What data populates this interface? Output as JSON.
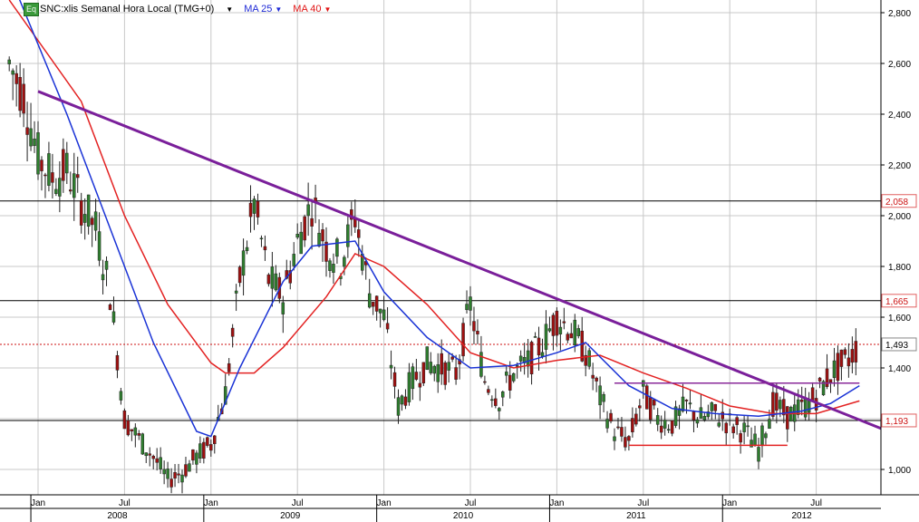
{
  "header": {
    "eq_badge": "Eq",
    "symbol": "SNC:xlis Semanal Hora Local (TMG+0)",
    "ma25_label": "MA 25",
    "ma40_label": "MA 40",
    "dropdown_glyph": "▼"
  },
  "colors": {
    "price_up": "#2f7f2f",
    "price_down": "#a01010",
    "ma25": "#1a33d6",
    "ma40": "#e32222",
    "trendline": "#7a1f9a",
    "support_line": "#e32222",
    "resistance_line": "#8a2a9a",
    "last_price_line": "#cc1111",
    "grid": "#c8c8c8"
  },
  "chart_data": {
    "type": "candlestick",
    "y_axis": {
      "min": 900,
      "max": 2850,
      "ticks": [
        "2,800",
        "2,600",
        "2,400",
        "2,200",
        "2,000",
        "1,800",
        "1,600",
        "1,400",
        "1,200",
        "1,000"
      ],
      "tick_values": [
        2800,
        2600,
        2400,
        2200,
        2000,
        1800,
        1600,
        1400,
        1200,
        1000
      ],
      "position": "right"
    },
    "x_axis": {
      "months": [
        "Jan",
        "Jul",
        "Jan",
        "Jul",
        "Jan",
        "Jul",
        "Jan",
        "Jul",
        "Jan",
        "Jul"
      ],
      "month_dates": [
        "2008-01",
        "2008-07",
        "2009-01",
        "2009-07",
        "2010-01",
        "2010-07",
        "2011-01",
        "2011-07",
        "2012-01",
        "2012-07"
      ],
      "years": [
        "2008",
        "2009",
        "2010",
        "2011",
        "2012"
      ]
    },
    "horizontal_levels": [
      {
        "value": 2058,
        "label": "2,058",
        "style": "solid",
        "color": "#000000"
      },
      {
        "value": 1665,
        "label": "1,665",
        "style": "solid",
        "color": "#000000"
      },
      {
        "value": 1193,
        "label": "1,193",
        "style": "solid",
        "color": "#000000"
      },
      {
        "value": 1493,
        "label": "1,493",
        "style": "dotted",
        "color": "#cc1111"
      }
    ],
    "last_price": 1493,
    "series_close": [
      {
        "date": "2007-11",
        "close": 2600
      },
      {
        "date": "2007-12",
        "close": 2480
      },
      {
        "date": "2008-01",
        "close": 2230
      },
      {
        "date": "2008-02",
        "close": 2150
      },
      {
        "date": "2008-03",
        "close": 2180
      },
      {
        "date": "2008-04",
        "close": 2050
      },
      {
        "date": "2008-05",
        "close": 1950
      },
      {
        "date": "2008-06",
        "close": 1700
      },
      {
        "date": "2008-07",
        "close": 1200
      },
      {
        "date": "2008-08",
        "close": 1120
      },
      {
        "date": "2008-09",
        "close": 1050
      },
      {
        "date": "2008-10",
        "close": 960
      },
      {
        "date": "2008-11",
        "close": 990
      },
      {
        "date": "2008-12",
        "close": 1050
      },
      {
        "date": "2009-01",
        "close": 1100
      },
      {
        "date": "2009-02",
        "close": 1300
      },
      {
        "date": "2009-03",
        "close": 1750
      },
      {
        "date": "2009-04",
        "close": 2050
      },
      {
        "date": "2009-05",
        "close": 1750
      },
      {
        "date": "2009-06",
        "close": 1680
      },
      {
        "date": "2009-07",
        "close": 1900
      },
      {
        "date": "2009-08",
        "close": 2050
      },
      {
        "date": "2009-09",
        "close": 1880
      },
      {
        "date": "2009-10",
        "close": 1820
      },
      {
        "date": "2009-11",
        "close": 2000
      },
      {
        "date": "2009-12",
        "close": 1700
      },
      {
        "date": "2010-01",
        "close": 1600
      },
      {
        "date": "2010-02",
        "close": 1250
      },
      {
        "date": "2010-03",
        "close": 1350
      },
      {
        "date": "2010-04",
        "close": 1420
      },
      {
        "date": "2010-05",
        "close": 1400
      },
      {
        "date": "2010-06",
        "close": 1380
      },
      {
        "date": "2010-07",
        "close": 1650
      },
      {
        "date": "2010-08",
        "close": 1350
      },
      {
        "date": "2010-09",
        "close": 1280
      },
      {
        "date": "2010-10",
        "close": 1380
      },
      {
        "date": "2010-11",
        "close": 1420
      },
      {
        "date": "2010-12",
        "close": 1500
      },
      {
        "date": "2011-01",
        "close": 1600
      },
      {
        "date": "2011-02",
        "close": 1550
      },
      {
        "date": "2011-03",
        "close": 1460
      },
      {
        "date": "2011-04",
        "close": 1280
      },
      {
        "date": "2011-05",
        "close": 1150
      },
      {
        "date": "2011-06",
        "close": 1110
      },
      {
        "date": "2011-07",
        "close": 1300
      },
      {
        "date": "2011-08",
        "close": 1200
      },
      {
        "date": "2011-09",
        "close": 1180
      },
      {
        "date": "2011-10",
        "close": 1250
      },
      {
        "date": "2011-11",
        "close": 1200
      },
      {
        "date": "2011-12",
        "close": 1220
      },
      {
        "date": "2012-01",
        "close": 1180
      },
      {
        "date": "2012-02",
        "close": 1150
      },
      {
        "date": "2012-03",
        "close": 1080
      },
      {
        "date": "2012-04",
        "close": 1260
      },
      {
        "date": "2012-05",
        "close": 1210
      },
      {
        "date": "2012-06",
        "close": 1240
      },
      {
        "date": "2012-07",
        "close": 1290
      },
      {
        "date": "2012-08",
        "close": 1380
      },
      {
        "date": "2012-09",
        "close": 1420
      },
      {
        "date": "2012-10",
        "close": 1493
      }
    ],
    "ma25_points": [
      {
        "date": "2007-11",
        "value": 2950
      },
      {
        "date": "2008-03",
        "value": 2400
      },
      {
        "date": "2008-06",
        "value": 1950
      },
      {
        "date": "2008-09",
        "value": 1500
      },
      {
        "date": "2008-12",
        "value": 1150
      },
      {
        "date": "2009-01",
        "value": 1130
      },
      {
        "date": "2009-03",
        "value": 1400
      },
      {
        "date": "2009-06",
        "value": 1740
      },
      {
        "date": "2009-08",
        "value": 1880
      },
      {
        "date": "2009-11",
        "value": 1900
      },
      {
        "date": "2010-01",
        "value": 1700
      },
      {
        "date": "2010-04",
        "value": 1520
      },
      {
        "date": "2010-07",
        "value": 1400
      },
      {
        "date": "2010-10",
        "value": 1410
      },
      {
        "date": "2011-01",
        "value": 1460
      },
      {
        "date": "2011-03",
        "value": 1500
      },
      {
        "date": "2011-06",
        "value": 1330
      },
      {
        "date": "2011-09",
        "value": 1240
      },
      {
        "date": "2011-12",
        "value": 1220
      },
      {
        "date": "2012-03",
        "value": 1210
      },
      {
        "date": "2012-06",
        "value": 1230
      },
      {
        "date": "2012-08",
        "value": 1260
      },
      {
        "date": "2012-10",
        "value": 1330
      }
    ],
    "ma40_points": [
      {
        "date": "2007-11",
        "value": 2850
      },
      {
        "date": "2008-04",
        "value": 2450
      },
      {
        "date": "2008-07",
        "value": 2000
      },
      {
        "date": "2008-10",
        "value": 1650
      },
      {
        "date": "2009-01",
        "value": 1420
      },
      {
        "date": "2009-02",
        "value": 1380
      },
      {
        "date": "2009-04",
        "value": 1380
      },
      {
        "date": "2009-06",
        "value": 1480
      },
      {
        "date": "2009-09",
        "value": 1680
      },
      {
        "date": "2009-11",
        "value": 1850
      },
      {
        "date": "2010-01",
        "value": 1800
      },
      {
        "date": "2010-04",
        "value": 1650
      },
      {
        "date": "2010-07",
        "value": 1460
      },
      {
        "date": "2010-10",
        "value": 1400
      },
      {
        "date": "2011-01",
        "value": 1430
      },
      {
        "date": "2011-04",
        "value": 1450
      },
      {
        "date": "2011-07",
        "value": 1380
      },
      {
        "date": "2011-10",
        "value": 1320
      },
      {
        "date": "2012-01",
        "value": 1250
      },
      {
        "date": "2012-04",
        "value": 1220
      },
      {
        "date": "2012-07",
        "value": 1220
      },
      {
        "date": "2012-10",
        "value": 1270
      }
    ],
    "trendline": {
      "from": {
        "date": "2008-01",
        "value": 2490
      },
      "to": {
        "date": "2012-12",
        "value": 1150
      }
    },
    "support_line": {
      "from": {
        "date": "2011-06",
        "value": 1095
      },
      "to": {
        "date": "2012-05",
        "value": 1095
      }
    },
    "resistance_line": {
      "from": {
        "date": "2011-05",
        "value": 1340
      },
      "to": {
        "date": "2012-10",
        "value": 1340
      }
    },
    "grid": true
  }
}
